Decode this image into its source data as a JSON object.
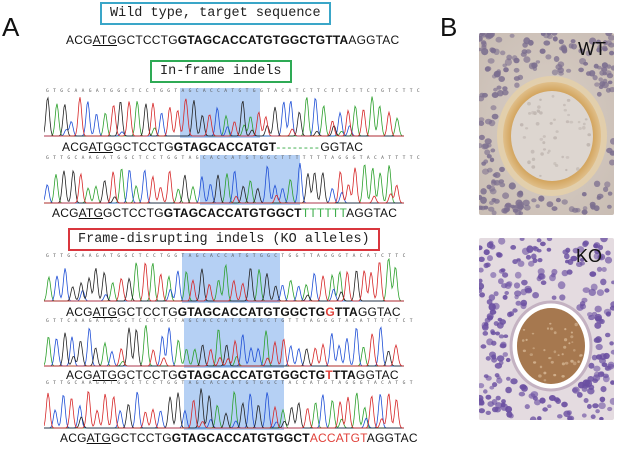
{
  "panel_a": {
    "letter": "A",
    "wild_type": {
      "label": "Wild type, target sequence",
      "label_color": "#3aa6c8",
      "seq": {
        "pre": "ACG",
        "atg": "ATG",
        "mid": "GCTCCTG",
        "bold": "GTAGCACCATGTGGCTGTTA",
        "post": "AGGTAC"
      }
    },
    "in_frame": {
      "label": "In-frame indels",
      "label_color": "#2eaa55",
      "traces": [
        {
          "calls": "G T G C A A G A T G G C T C C T G G T A G C A C C A T G T G G T A C A T C T T C T T C T T C T G T C T T C",
          "seq": {
            "pre": "ACG",
            "atg": "ATG",
            "mid": "GCTCCTG",
            "bold": "GTAGCACCATGT",
            "edit": "--------",
            "post": "GGTAC"
          }
        },
        {
          "calls": "G T T G C A A G A T G G C T C C T G G T A G C A C C A T G T G G C T T T T T T T A G G G T A C A T T T T C",
          "seq": {
            "pre": "ACG",
            "atg": "ATG",
            "mid": "GCTCCTG",
            "bold": "GTAGCACCATGTGGCT",
            "edit": "TTTTTT",
            "post": "AGGTAC"
          }
        }
      ]
    },
    "frame_disrupting": {
      "label": "Frame-disrupting indels (KO alleles)",
      "label_color": "#d9363e",
      "traces": [
        {
          "calls": "G T T G C A A G A T G G C T C C T G G T A G C A C C A T G T G G C T G G T T A G G G T A C A T C T T C",
          "seq": {
            "pre": "ACG",
            "atg": "ATG",
            "mid": "GCTCCTG",
            "bold": "GTAGCACCATGTGGCTG",
            "edit": "G",
            "post_bold": "TTA",
            "post": "GGTAC"
          }
        },
        {
          "calls": "G T T C A A G A T G G C T C C T G G T A G C A C C A T G T G G C T G T T T A G G G T A C A T T T C T C T",
          "seq": {
            "pre": "ACG",
            "atg": "ATG",
            "mid": "GCTCCTG",
            "bold": "GTAGCACCATGTGGCTG",
            "edit": "T",
            "post_bold": "TTA",
            "post": "GGTAC"
          }
        },
        {
          "calls": "G T T G C A A G A T G G C T C C T G G T A G C A C C A T G T G G C T A C C A T G T A G G G T A C A T G T",
          "seq": {
            "pre": "ACG",
            "atg": "ATG",
            "mid": "GCTCCTG",
            "bold": "GTAGCACCATGTGGCT",
            "edit": "ACCATGT",
            "post": "AGGTAC"
          }
        }
      ]
    },
    "colors": {
      "A": "#2ca02c",
      "C": "#1f4fd6",
      "G": "#222222",
      "T": "#d62728",
      "insert_green": "#3fae4d",
      "edit_red": "#e0413a"
    }
  },
  "panel_b": {
    "letter": "B",
    "images": [
      {
        "label": "WT"
      },
      {
        "label": "KO"
      }
    ]
  }
}
